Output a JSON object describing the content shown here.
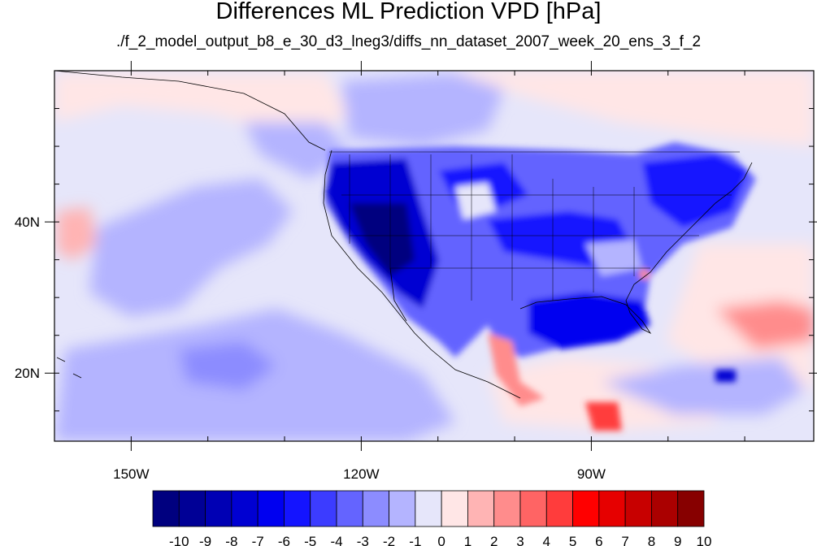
{
  "title": "Differences ML Prediction VPD [hPa]",
  "subtitle": "./f_2_model_output_b8_e_30_d3_lneg3/diffs_nn_dataset_2007_week_20_ens_3_f_2",
  "map": {
    "type": "filled-contour-map",
    "lon_range": [
      -160,
      -61
    ],
    "lat_range": [
      11,
      60
    ],
    "lon_ticks": [
      {
        "value": -150,
        "label": "150W"
      },
      {
        "value": -120,
        "label": "120W"
      },
      {
        "value": -90,
        "label": "90W"
      }
    ],
    "lat_ticks": [
      {
        "value": 20,
        "label": "20N"
      },
      {
        "value": 40,
        "label": "40N"
      }
    ],
    "minor_lon_step": 10,
    "minor_lat_step": 5
  },
  "colorbar": {
    "levels": [
      "-10",
      "-9",
      "-8",
      "-7",
      "-6",
      "-5",
      "-4",
      "-3",
      "-2",
      "-1",
      "0",
      "1",
      "2",
      "3",
      "4",
      "5",
      "6",
      "7",
      "8",
      "9",
      "10"
    ],
    "colors": [
      "#00007f",
      "#000096",
      "#0000b4",
      "#0000d2",
      "#0000f0",
      "#1414ff",
      "#3c3cff",
      "#6464ff",
      "#8c8cff",
      "#b4b4ff",
      "#e6e6fa",
      "#ffe6e6",
      "#ffb4b4",
      "#ff8c8c",
      "#ff6464",
      "#ff3c3c",
      "#ff0000",
      "#e60000",
      "#c80000",
      "#aa0000",
      "#870000"
    ]
  }
}
